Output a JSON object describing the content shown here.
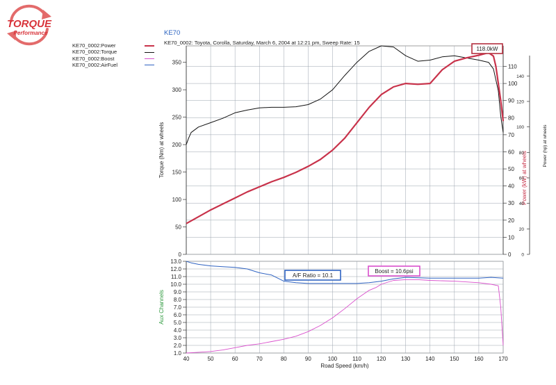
{
  "logo": {
    "main": "TORQUE",
    "sub": "Performance"
  },
  "legend": [
    {
      "label": "KE70_0002:Power",
      "color": "#c8324a",
      "width": 2
    },
    {
      "label": "KE70_0002:Torque",
      "color": "#111111",
      "width": 1
    },
    {
      "label": "KE70_0002:Boost",
      "color": "#d94fcc",
      "width": 1
    },
    {
      "label": "KE70_0002:AirFuel",
      "color": "#2f63c2",
      "width": 1
    }
  ],
  "chart_data": {
    "type": "line",
    "title": "KE70",
    "subtitle": "KE70_0002: Toyota, Corolla, Saturday, March 6, 2004  at  12:21 pm,  Sweep Rate: 15",
    "xlabel": "Road Speed (km/h)",
    "xlim": [
      40,
      170
    ],
    "x_ticks": [
      40,
      50,
      60,
      70,
      80,
      90,
      100,
      110,
      120,
      130,
      140,
      150,
      160,
      170
    ],
    "top_panel": {
      "left_axis": {
        "label": "Torque (Nm) at wheels",
        "ylim": [
          0,
          380
        ],
        "ticks": [
          0,
          50,
          100,
          150,
          200,
          250,
          300,
          350
        ]
      },
      "right_axis": {
        "label": "Power (kW) at wheels",
        "ylim": [
          0,
          122
        ],
        "ticks": [
          0,
          10,
          20,
          30,
          40,
          50,
          60,
          70,
          80,
          90,
          100,
          110
        ]
      },
      "far_right_axis": {
        "label": "Power (hp) at wheels",
        "ylim": [
          0,
          163.6
        ],
        "ticks": [
          0,
          20,
          40,
          60,
          80,
          100,
          120,
          140
        ]
      },
      "series": [
        {
          "name": "KE70_0002:Power",
          "axis": "right",
          "color": "#c8324a",
          "x": [
            40,
            45,
            50,
            55,
            60,
            65,
            70,
            75,
            80,
            85,
            90,
            95,
            100,
            105,
            110,
            115,
            120,
            125,
            130,
            135,
            140,
            145,
            150,
            155,
            160,
            164,
            166,
            167,
            168,
            169,
            170
          ],
          "y": [
            18,
            22,
            26,
            29.5,
            33,
            36.5,
            39.5,
            42.5,
            45,
            48,
            51.5,
            55.5,
            61,
            68,
            77,
            86,
            93.5,
            98,
            100,
            99.5,
            100,
            108,
            113,
            115,
            116.5,
            118,
            116,
            110,
            100,
            90,
            78
          ]
        },
        {
          "name": "KE70_0002:Torque",
          "axis": "left",
          "color": "#111111",
          "x": [
            40,
            41,
            42,
            45,
            50,
            55,
            60,
            65,
            70,
            75,
            80,
            85,
            90,
            95,
            100,
            105,
            110,
            115,
            120,
            125,
            130,
            135,
            140,
            145,
            150,
            155,
            160,
            164,
            166,
            168,
            169,
            170
          ],
          "y": [
            200,
            212,
            222,
            232,
            240,
            248,
            258,
            263,
            267,
            268,
            268,
            269,
            273,
            283,
            300,
            326,
            350,
            370,
            380,
            378,
            362,
            352,
            354,
            360,
            362,
            358,
            354,
            350,
            338,
            298,
            252,
            222
          ]
        }
      ]
    },
    "bottom_panel": {
      "axis": {
        "label": "Aux Channels",
        "ylim": [
          1,
          13
        ],
        "ticks": [
          1.0,
          2.0,
          3.0,
          4.0,
          5.0,
          6.0,
          7.0,
          8.0,
          9.0,
          10.0,
          11.0,
          12.0,
          13.0
        ]
      },
      "series": [
        {
          "name": "KE70_0002:AirFuel",
          "color": "#2f63c2",
          "x": [
            40,
            42,
            45,
            50,
            55,
            60,
            65,
            70,
            75,
            80,
            85,
            90,
            100,
            110,
            115,
            120,
            125,
            130,
            140,
            150,
            160,
            165,
            170
          ],
          "y": [
            13.0,
            12.8,
            12.6,
            12.4,
            12.3,
            12.2,
            12.0,
            11.5,
            11.2,
            10.4,
            10.2,
            10.1,
            10.1,
            10.1,
            10.2,
            10.4,
            10.7,
            10.9,
            10.8,
            10.8,
            10.8,
            10.9,
            10.8
          ]
        },
        {
          "name": "KE70_0002:Boost",
          "color": "#d94fcc",
          "x": [
            40,
            45,
            50,
            55,
            60,
            65,
            70,
            75,
            80,
            85,
            90,
            95,
            100,
            105,
            110,
            115,
            118,
            120,
            125,
            130,
            135,
            140,
            150,
            160,
            165,
            168,
            169,
            170
          ],
          "y": [
            1.0,
            1.1,
            1.2,
            1.4,
            1.7,
            2.0,
            2.2,
            2.5,
            2.8,
            3.2,
            3.8,
            4.6,
            5.6,
            6.8,
            8.1,
            9.2,
            9.6,
            10.0,
            10.5,
            10.6,
            10.6,
            10.5,
            10.4,
            10.2,
            10.0,
            9.8,
            7.0,
            2.0
          ]
        }
      ]
    },
    "annotations": {
      "peak_power": "118.0kW",
      "af_ratio": "A/F Ratio = 10.1",
      "boost": "Boost = 10.6psi"
    }
  }
}
